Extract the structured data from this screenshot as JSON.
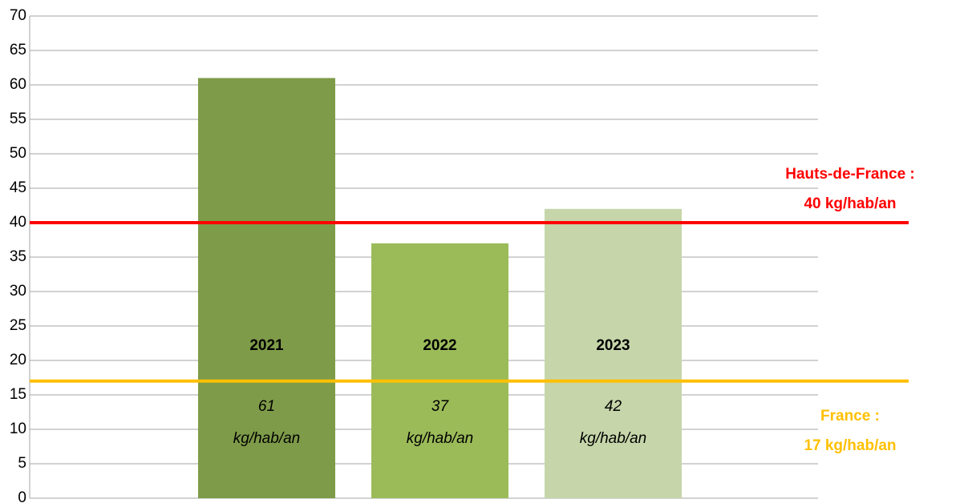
{
  "chart_data": {
    "type": "bar",
    "categories": [
      "2021",
      "2022",
      "2023"
    ],
    "values": [
      61,
      37,
      42
    ],
    "value_labels": [
      "61 kg/hab/an",
      "37 kg/hab/an",
      "42 kg/hab/an"
    ],
    "colors": [
      "#7e9b49",
      "#9bbb59",
      "#c6d6aa"
    ],
    "ylim": [
      0,
      70
    ],
    "yticks": [
      0,
      5,
      10,
      15,
      20,
      25,
      30,
      35,
      40,
      45,
      50,
      55,
      60,
      65,
      70
    ],
    "grid": true,
    "reference_lines": [
      {
        "value": 40,
        "color": "#ff0000",
        "label": [
          "Hauts-de-France :",
          "40 kg/hab/an"
        ]
      },
      {
        "value": 17,
        "color": "#ffc000",
        "label": [
          "France :",
          "17 kg/hab/an"
        ]
      }
    ]
  }
}
